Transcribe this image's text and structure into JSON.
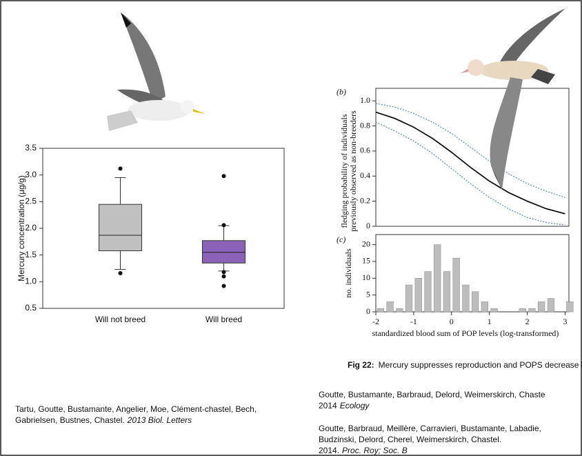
{
  "chart_data": [
    {
      "type": "box",
      "ylabel": "Mercury concentration (µg/g)",
      "categories": [
        "Will not breed",
        "Will breed"
      ],
      "colors": [
        "#c0c0c0",
        "#8a62b8"
      ],
      "boxes": [
        {
          "whislo": 1.23,
          "q1": 1.58,
          "med": 1.87,
          "q3": 2.45,
          "whishi": 2.95,
          "fliers": [
            3.12,
            1.16
          ]
        },
        {
          "whislo": 1.2,
          "q1": 1.35,
          "med": 1.55,
          "q3": 1.77,
          "whishi": 2.05,
          "fliers": [
            2.98,
            2.06,
            1.18,
            1.1,
            0.92
          ]
        }
      ],
      "ylim": [
        0.5,
        3.5
      ],
      "yticks": [
        0.5,
        {
          "value": 1,
          "label": "1.0"
        },
        1.5,
        {
          "value": 2,
          "label": "2.0"
        },
        2.5,
        {
          "value": 3,
          "label": "3.0"
        },
        3.5
      ]
    },
    {
      "type": "line",
      "panel": "(b)",
      "ylabel": [
        "fledging probability of individuals",
        "previously observed as non-breeders"
      ],
      "x": [
        -2,
        -1.5,
        -1,
        -0.5,
        0,
        0.5,
        1,
        1.5,
        2,
        2.5,
        3
      ],
      "series": [
        {
          "color": "#111111",
          "dash": "none",
          "values": [
            0.91,
            0.86,
            0.79,
            0.7,
            0.59,
            0.47,
            0.36,
            0.27,
            0.2,
            0.14,
            0.1
          ]
        },
        {
          "color": "#5b8fc8",
          "dash": "2 2",
          "values": [
            0.98,
            0.95,
            0.9,
            0.83,
            0.74,
            0.63,
            0.52,
            0.42,
            0.34,
            0.28,
            0.23
          ]
        },
        {
          "color": "#5b8fc8",
          "dash": "2 2",
          "values": [
            0.83,
            0.76,
            0.68,
            0.58,
            0.46,
            0.34,
            0.23,
            0.14,
            0.07,
            0.03,
            0.01
          ]
        }
      ],
      "xlim": [
        -2,
        3.1
      ],
      "ylim": [
        0,
        1.1
      ],
      "yticks": [
        0,
        0.2,
        0.4,
        0.6,
        0.8,
        {
          "value": 1,
          "label": "1.0"
        }
      ]
    },
    {
      "type": "histogram",
      "panel": "(c)",
      "ylabel": "no. individuals",
      "xlabel": "standardized blood sum of POP levels (log-transformed)",
      "bins": [
        -2,
        -1.75,
        -1.5,
        -1.25,
        -1,
        -0.75,
        -0.5,
        -0.25,
        0,
        0.25,
        0.5,
        0.75,
        1,
        1.25,
        1.5,
        1.75,
        2,
        2.25,
        2.5,
        2.75,
        3,
        3.25
      ],
      "values": [
        1,
        3,
        1,
        8,
        10,
        12,
        20,
        12,
        16,
        8,
        6,
        3,
        1,
        0,
        0,
        1,
        1,
        3,
        4,
        0,
        3
      ],
      "color": "#bdbdbd",
      "xlim": [
        -2,
        3.1
      ],
      "ylim": [
        0,
        23
      ],
      "xticks": [
        -2,
        -1,
        0,
        1,
        2,
        3
      ],
      "yticks": [
        0,
        5,
        10,
        15,
        20
      ]
    }
  ],
  "caption": {
    "prefix": "Fig 22:",
    "text": "Mercury suppresses reproduction and POPS decrease long-term fecundity"
  },
  "references": [
    {
      "lines": [
        "Tartu, Goutte, Bustamante, Angelier, Moe, Clément-chastel, Bech,",
        "Gabrielsen, Bustnes, Chastel."
      ],
      "source": "2013 Biol. Letters"
    },
    {
      "lines": [
        "Goutte, Bustamante, Barbraud, Delord,   Weimerskirch, Chaste",
        "2014"
      ],
      "source": "Ecology"
    },
    {
      "lines": [
        "Goutte, Barbraud, Meillère, Carravieri, Bustamante,  Labadie,",
        "Budzinski, Delord, Cherel, Weimerskirch, Chastel.",
        "2014."
      ],
      "source": "Proc. Roy; Soc. B"
    }
  ]
}
